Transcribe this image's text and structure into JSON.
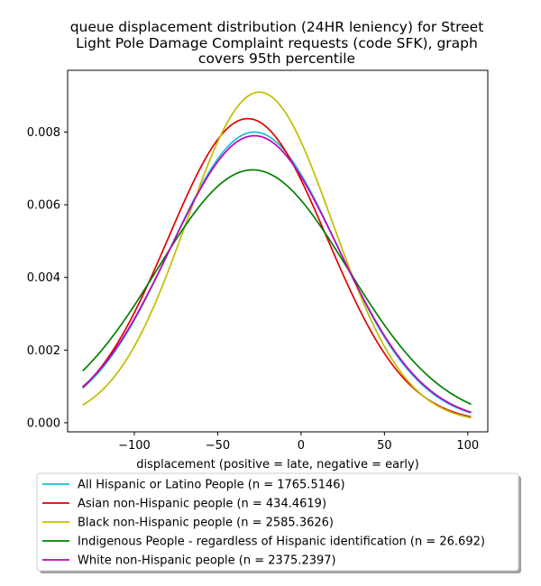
{
  "chart_data": {
    "type": "line",
    "title_lines": [
      "queue displacement distribution (24HR leniency) for Street",
      "Light Pole Damage Complaint  requests (code SFK), graph",
      "covers 95th percentile"
    ],
    "xlabel": "displacement (positive = late, negative = early)",
    "ylabel": "",
    "xlim": [
      -140,
      112
    ],
    "ylim": [
      -0.00025,
      0.0097
    ],
    "x_ticks": [
      -100,
      -50,
      0,
      50,
      100
    ],
    "x_tick_labels": [
      "−100",
      "−50",
      "0",
      "50",
      "100"
    ],
    "y_ticks": [
      0.0,
      0.002,
      0.004,
      0.006,
      0.008
    ],
    "y_tick_labels": [
      "0.000",
      "0.002",
      "0.004",
      "0.006",
      "0.008"
    ],
    "x_range": [
      -131,
      102
    ],
    "grid": false,
    "legend_position": "below-plot",
    "series": [
      {
        "name": "All Hispanic or Latino People (n = 1765.5146)",
        "color": "#17becf",
        "mean": -28,
        "sd": 49.9,
        "peak": 0.008
      },
      {
        "name": "Asian non-Hispanic people (n = 434.4619)",
        "color": "#e00000",
        "mean": -32,
        "sd": 47.7,
        "peak": 0.00837
      },
      {
        "name": "Black non-Hispanic people (n = 2585.3626)",
        "color": "#bfbf00",
        "mean": -25,
        "sd": 43.8,
        "peak": 0.0091
      },
      {
        "name": "Indigenous People - regardless of Hispanic identification (n = 26.692)",
        "color": "#008000",
        "mean": -29,
        "sd": 57.3,
        "peak": 0.00696
      },
      {
        "name": "White non-Hispanic people (n = 2375.2397)",
        "color": "#bf00bf",
        "mean": -28,
        "sd": 50.5,
        "peak": 0.0079
      }
    ]
  }
}
